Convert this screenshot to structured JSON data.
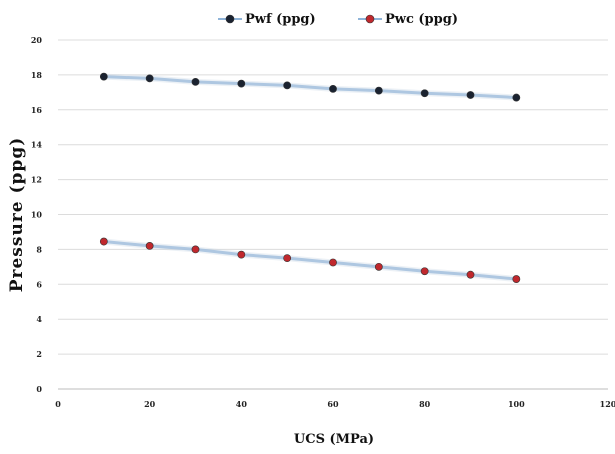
{
  "chart_data": {
    "type": "line",
    "xlabel": "UCS (MPa)",
    "ylabel": "Pressure (ppg)",
    "xlim": [
      0,
      120
    ],
    "ylim": [
      0,
      20
    ],
    "x_ticks": [
      0,
      20,
      40,
      60,
      80,
      100,
      120
    ],
    "y_ticks": [
      0,
      2,
      4,
      6,
      8,
      10,
      12,
      14,
      16,
      18,
      20
    ],
    "grid": "horizontal",
    "legend_position": "top-center",
    "x": [
      10,
      20,
      30,
      40,
      50,
      60,
      70,
      80,
      90,
      100
    ],
    "series": [
      {
        "name": "Pwf (ppg)",
        "values": [
          17.9,
          17.8,
          17.6,
          17.5,
          17.4,
          17.2,
          17.1,
          16.95,
          16.85,
          16.7
        ],
        "marker_color": "#1a2230",
        "line_color": "#8fb4d9"
      },
      {
        "name": "Pwc (ppg)",
        "values": [
          8.45,
          8.2,
          8.0,
          7.7,
          7.5,
          7.25,
          7.0,
          6.75,
          6.55,
          6.3
        ],
        "marker_color": "#c0282d",
        "line_color": "#8fb4d9"
      }
    ]
  }
}
